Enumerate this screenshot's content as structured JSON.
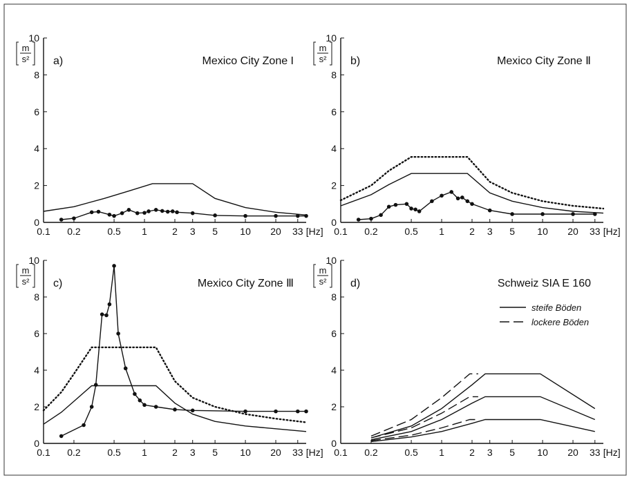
{
  "figure": {
    "colors": {
      "ink": "#111111",
      "background": "#ffffff",
      "frame": "#333333"
    }
  },
  "chart_data": [
    {
      "id": "a",
      "panel_label": "a)",
      "title": "Mexico City Zone I",
      "type": "line",
      "x_scale": "log",
      "xlim": [
        0.1,
        40
      ],
      "ylim": [
        0,
        10
      ],
      "x_tick_labels": [
        "0.1",
        "0.2",
        "0.5",
        "1",
        "2",
        "3",
        "5",
        "10",
        "20",
        "33",
        "[Hz]"
      ],
      "x_ticks": [
        0.1,
        0.2,
        0.5,
        1,
        2,
        3,
        5,
        10,
        20,
        33
      ],
      "y_ticks": [
        0,
        2,
        4,
        6,
        8,
        10
      ],
      "y_tick_labels": [
        "0",
        "2",
        "4",
        "6",
        "8",
        "10"
      ],
      "y_unit": {
        "num": "m",
        "den": "s²"
      },
      "grid": false,
      "series": [
        {
          "style": "solid",
          "markers": false,
          "x": [
            0.1,
            0.2,
            0.4,
            0.7,
            1.2,
            3.0,
            5.0,
            10,
            20,
            40
          ],
          "y": [
            0.6,
            0.85,
            1.3,
            1.7,
            2.1,
            2.1,
            1.3,
            0.8,
            0.55,
            0.4
          ]
        },
        {
          "style": "solid",
          "markers": true,
          "x": [
            0.15,
            0.2,
            0.3,
            0.35,
            0.45,
            0.5,
            0.6,
            0.7,
            0.85,
            1.0,
            1.1,
            1.3,
            1.5,
            1.7,
            1.9,
            2.1,
            3.0,
            5,
            10,
            20,
            33,
            40
          ],
          "y": [
            0.15,
            0.22,
            0.55,
            0.58,
            0.42,
            0.35,
            0.5,
            0.68,
            0.5,
            0.52,
            0.6,
            0.68,
            0.62,
            0.58,
            0.6,
            0.55,
            0.5,
            0.38,
            0.35,
            0.35,
            0.35,
            0.35
          ]
        }
      ]
    },
    {
      "id": "b",
      "panel_label": "b)",
      "title": "Mexico City Zone Ⅱ",
      "type": "line",
      "x_scale": "log",
      "xlim": [
        0.1,
        40
      ],
      "ylim": [
        0,
        10
      ],
      "x_tick_labels": [
        "0.1",
        "0.2",
        "0.5",
        "1",
        "2",
        "3",
        "5",
        "10",
        "20",
        "33",
        "[Hz]"
      ],
      "x_ticks": [
        0.1,
        0.2,
        0.5,
        1,
        2,
        3,
        5,
        10,
        20,
        33
      ],
      "y_ticks": [
        0,
        2,
        4,
        6,
        8,
        10
      ],
      "y_tick_labels": [
        "0",
        "2",
        "4",
        "6",
        "8",
        "10"
      ],
      "y_unit": {
        "num": "m",
        "den": "s²"
      },
      "grid": false,
      "series": [
        {
          "style": "dotted",
          "markers": false,
          "x": [
            0.1,
            0.2,
            0.3,
            0.5,
            1.0,
            1.8,
            3,
            5,
            10,
            20,
            40
          ],
          "y": [
            1.2,
            2.0,
            2.8,
            3.55,
            3.55,
            3.55,
            2.2,
            1.6,
            1.15,
            0.9,
            0.75
          ]
        },
        {
          "style": "solid",
          "markers": false,
          "x": [
            0.1,
            0.2,
            0.3,
            0.5,
            1.0,
            1.8,
            3,
            5,
            10,
            20,
            40
          ],
          "y": [
            0.9,
            1.5,
            2.05,
            2.65,
            2.65,
            2.65,
            1.6,
            1.15,
            0.8,
            0.6,
            0.5
          ]
        },
        {
          "style": "solid",
          "markers": true,
          "x": [
            0.15,
            0.2,
            0.25,
            0.3,
            0.35,
            0.45,
            0.5,
            0.55,
            0.6,
            0.8,
            1.0,
            1.25,
            1.45,
            1.6,
            1.8,
            2.0,
            3,
            5,
            10,
            20,
            33
          ],
          "y": [
            0.15,
            0.2,
            0.4,
            0.85,
            0.95,
            1.0,
            0.75,
            0.7,
            0.6,
            1.15,
            1.45,
            1.65,
            1.3,
            1.35,
            1.15,
            1.0,
            0.65,
            0.45,
            0.45,
            0.45,
            0.45
          ]
        }
      ]
    },
    {
      "id": "c",
      "panel_label": "c)",
      "title": "Mexico City Zone Ⅲ",
      "type": "line",
      "x_scale": "log",
      "xlim": [
        0.1,
        40
      ],
      "ylim": [
        0,
        10
      ],
      "x_tick_labels": [
        "0.1",
        "0.2",
        "0.5",
        "1",
        "2",
        "3",
        "5",
        "10",
        "20",
        "33",
        "[Hz]"
      ],
      "x_ticks": [
        0.1,
        0.2,
        0.5,
        1,
        2,
        3,
        5,
        10,
        20,
        33
      ],
      "y_ticks": [
        0,
        2,
        4,
        6,
        8,
        10
      ],
      "y_tick_labels": [
        "0",
        "2",
        "4",
        "6",
        "8",
        "10"
      ],
      "y_unit": {
        "num": "m",
        "den": "s²"
      },
      "grid": false,
      "series": [
        {
          "style": "dotted",
          "markers": false,
          "x": [
            0.1,
            0.15,
            0.2,
            0.3,
            0.4,
            1.3,
            2,
            3,
            5,
            10,
            20,
            40
          ],
          "y": [
            1.8,
            2.8,
            3.8,
            5.25,
            5.25,
            5.25,
            3.4,
            2.5,
            2.0,
            1.6,
            1.35,
            1.15
          ]
        },
        {
          "style": "solid",
          "markers": false,
          "x": [
            0.1,
            0.15,
            0.2,
            0.3,
            0.4,
            1.3,
            2,
            3,
            5,
            10,
            20,
            40
          ],
          "y": [
            1.05,
            1.7,
            2.3,
            3.15,
            3.15,
            3.15,
            2.2,
            1.6,
            1.2,
            0.95,
            0.8,
            0.65
          ]
        },
        {
          "style": "solid",
          "markers": true,
          "x": [
            0.15,
            0.25,
            0.3,
            0.33,
            0.38,
            0.42,
            0.45,
            0.5,
            0.55,
            0.65,
            0.8,
            0.9,
            1.0,
            1.3,
            2.0,
            3.0,
            10,
            20,
            33,
            40
          ],
          "y": [
            0.4,
            1.0,
            2.0,
            3.2,
            7.05,
            7.0,
            7.6,
            9.7,
            6.0,
            4.1,
            2.7,
            2.35,
            2.1,
            2.0,
            1.85,
            1.8,
            1.75,
            1.75,
            1.75,
            1.75
          ]
        }
      ]
    },
    {
      "id": "d",
      "panel_label": "d)",
      "title": "Schweiz  SIA  E 160",
      "type": "line",
      "x_scale": "log",
      "xlim": [
        0.1,
        40
      ],
      "ylim": [
        0,
        10
      ],
      "x_tick_labels": [
        "0.1",
        "0.2",
        "0.5",
        "1",
        "2",
        "3",
        "5",
        "10",
        "20",
        "33",
        "[Hz]"
      ],
      "x_ticks": [
        0.1,
        0.2,
        0.5,
        1,
        2,
        3,
        5,
        10,
        20,
        33
      ],
      "y_ticks": [
        0,
        2,
        4,
        6,
        8,
        10
      ],
      "y_tick_labels": [
        "0",
        "2",
        "4",
        "6",
        "8",
        "10"
      ],
      "y_unit": {
        "num": "m",
        "den": "s²"
      },
      "grid": false,
      "legend": {
        "placement": "top-right",
        "items": [
          {
            "label": "steife Böden",
            "style": "solid"
          },
          {
            "label": "lockere Böden",
            "style": "dashed"
          }
        ]
      },
      "series": [
        {
          "name": "steife Böden",
          "style": "solid",
          "markers": false,
          "x": [
            0.2,
            0.5,
            1,
            2,
            2.7,
            9.5,
            33
          ],
          "y": [
            0.3,
            0.95,
            1.9,
            3.2,
            3.8,
            3.8,
            1.9
          ]
        },
        {
          "name": "steife Böden",
          "style": "solid",
          "markers": false,
          "x": [
            0.2,
            0.5,
            1,
            2,
            2.7,
            9.5,
            33
          ],
          "y": [
            0.2,
            0.65,
            1.3,
            2.2,
            2.55,
            2.55,
            1.3
          ]
        },
        {
          "name": "steife Böden",
          "style": "solid",
          "markers": false,
          "x": [
            0.2,
            0.5,
            1,
            2,
            2.7,
            9.5,
            33
          ],
          "y": [
            0.1,
            0.35,
            0.65,
            1.1,
            1.3,
            1.3,
            0.65
          ]
        },
        {
          "name": "lockere Böden",
          "style": "dashed",
          "markers": false,
          "x": [
            0.2,
            0.5,
            1,
            1.9,
            2.3
          ],
          "y": [
            0.4,
            1.3,
            2.5,
            3.8,
            3.8
          ]
        },
        {
          "name": "lockere Böden",
          "style": "dashed",
          "markers": false,
          "x": [
            0.2,
            0.5,
            1,
            1.9,
            2.3
          ],
          "y": [
            0.3,
            0.85,
            1.65,
            2.55,
            2.55
          ]
        },
        {
          "name": "lockere Böden",
          "style": "dashed",
          "markers": false,
          "x": [
            0.2,
            0.5,
            1,
            1.9,
            2.3
          ],
          "y": [
            0.15,
            0.45,
            0.85,
            1.3,
            1.3
          ]
        }
      ]
    }
  ]
}
